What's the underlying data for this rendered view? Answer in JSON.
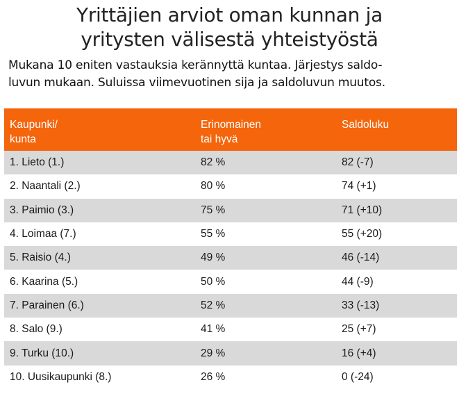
{
  "title": {
    "line1": "Yrittäjien arviot oman kunnan ja",
    "line2": "yritysten välisestä yhteistyöstä"
  },
  "subtitle": {
    "line1": "Mukana 10 eniten vastauksia kerännyttä kuntaa. Järjestys saldo-",
    "line2": "luvun mukaan. Suluissa viimevuotinen sija ja saldoluvun muutos."
  },
  "colors": {
    "header_bg": "#f4650c",
    "header_text": "#ffffff",
    "row_shade": "#d9d9d9",
    "row_plain": "#ffffff"
  },
  "table": {
    "headers": {
      "col1_line1": "Kaupunki/",
      "col1_line2": "kunta",
      "col2_line1": "Erinomainen",
      "col2_line2": "tai hyvä",
      "col3": "Saldoluku"
    },
    "rows": [
      {
        "name": "1. Lieto (1.)",
        "good": "82 %",
        "balance": "82 (-7)"
      },
      {
        "name": "2. Naantali (2.)",
        "good": "80 %",
        "balance": "74 (+1)"
      },
      {
        "name": "3. Paimio (3.)",
        "good": "75 %",
        "balance": "71 (+10)"
      },
      {
        "name": "4. Loimaa (7.)",
        "good": "55 %",
        "balance": "55 (+20)"
      },
      {
        "name": "5. Raisio (4.)",
        "good": "49 %",
        "balance": "46 (-14)"
      },
      {
        "name": "6. Kaarina (5.)",
        "good": "50 %",
        "balance": "44 (-9)"
      },
      {
        "name": "7. Parainen (6.)",
        "good": "52 %",
        "balance": "33 (-13)"
      },
      {
        "name": "8. Salo (9.)",
        "good": "41 %",
        "balance": "25 (+7)"
      },
      {
        "name": "9. Turku (10.)",
        "good": "29 %",
        "balance": "16 (+4)"
      },
      {
        "name": "10. Uusikaupunki (8.)",
        "good": "26 %",
        "balance": "0 (-24)"
      }
    ]
  }
}
